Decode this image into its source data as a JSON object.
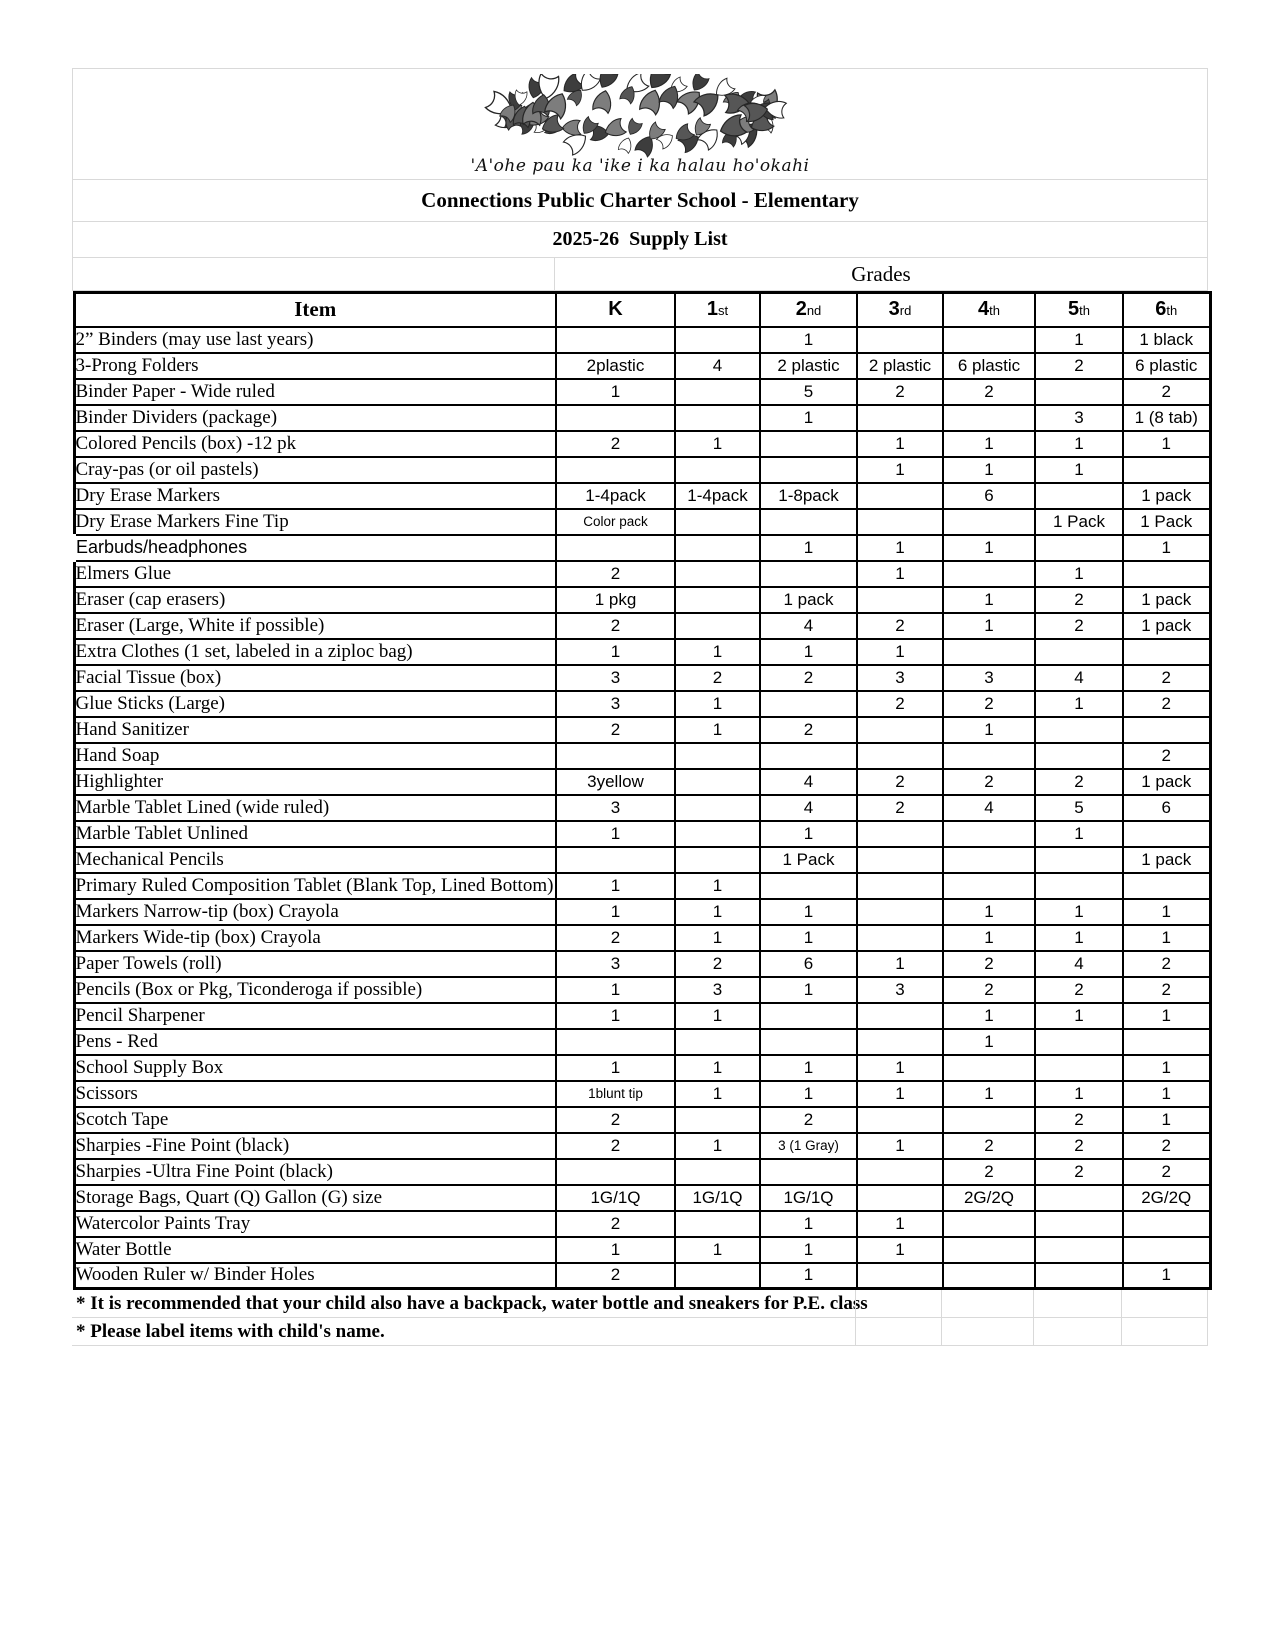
{
  "header": {
    "motto": "'A'ohe pau ka 'ike i ka halau ho'okahi",
    "school_title": "Connections Public Charter School - Elementary",
    "list_title": "2025-26  Supply List",
    "grades_label": "Grades"
  },
  "table": {
    "item_header": "Item",
    "grade_columns": [
      {
        "num": "K",
        "suffix": ""
      },
      {
        "num": "1",
        "suffix": "st"
      },
      {
        "num": "2",
        "suffix": "nd"
      },
      {
        "num": "3",
        "suffix": "rd"
      },
      {
        "num": "4",
        "suffix": "th"
      },
      {
        "num": "5",
        "suffix": "th"
      },
      {
        "num": "6",
        "suffix": "th"
      }
    ],
    "rows": [
      {
        "item": "2” Binders (may use last years)",
        "values": [
          "",
          "",
          "1",
          "",
          "",
          "1",
          "1 black"
        ]
      },
      {
        "item": "3-Prong Folders",
        "values": [
          "2plastic",
          "4",
          "2 plastic",
          "2 plastic",
          "6 plastic",
          "2",
          "6 plastic"
        ]
      },
      {
        "item": "Binder Paper - Wide ruled",
        "values": [
          "1",
          "",
          "5",
          "2",
          "2",
          "",
          "2"
        ]
      },
      {
        "item": "Binder Dividers (package)",
        "values": [
          "",
          "",
          "1",
          "",
          "",
          "3",
          "1 (8 tab)"
        ]
      },
      {
        "item": "Colored Pencils (box) -12 pk",
        "values": [
          "2",
          "1",
          "",
          "1",
          "1",
          "1",
          "1"
        ]
      },
      {
        "item": "Cray-pas (or oil pastels)",
        "values": [
          "",
          "",
          "",
          "1",
          "1",
          "1",
          ""
        ]
      },
      {
        "item": "Dry Erase Markers",
        "values": [
          "1-4pack",
          "1-4pack",
          "1-8pack",
          "",
          "6",
          "",
          "1 pack"
        ]
      },
      {
        "item": "Dry Erase Markers Fine Tip",
        "values": [
          "Color pack",
          "",
          "",
          "",
          "",
          "1 Pack",
          "1 Pack"
        ]
      },
      {
        "item": "Earbuds/headphones",
        "variant": "sans",
        "values": [
          "",
          "",
          "1",
          "1",
          "1",
          "",
          "1"
        ]
      },
      {
        "item": "Elmers Glue",
        "values": [
          "2",
          "",
          "",
          "1",
          "",
          "1",
          ""
        ]
      },
      {
        "item": "Eraser (cap erasers)",
        "values": [
          "1 pkg",
          "",
          "1 pack",
          "",
          "1",
          "2",
          "1 pack"
        ]
      },
      {
        "item": "Eraser (Large, White if possible)",
        "values": [
          "2",
          "",
          "4",
          "2",
          "1",
          "2",
          "1 pack"
        ]
      },
      {
        "item": "Extra Clothes (1 set, labeled in a ziploc bag)",
        "values": [
          "1",
          "1",
          "1",
          "1",
          "",
          "",
          ""
        ]
      },
      {
        "item": "Facial Tissue (box)",
        "values": [
          "3",
          "2",
          "2",
          "3",
          "3",
          "4",
          "2"
        ]
      },
      {
        "item": "Glue Sticks  (Large)",
        "values": [
          "3",
          "1",
          "",
          "2",
          "2",
          "1",
          "2"
        ]
      },
      {
        "item": "Hand Sanitizer",
        "values": [
          "2",
          "1",
          "2",
          "",
          "1",
          "",
          ""
        ]
      },
      {
        "item": "Hand Soap",
        "values": [
          "",
          "",
          "",
          "",
          "",
          "",
          "2"
        ]
      },
      {
        "item": "Highlighter",
        "values": [
          "3yellow",
          "",
          "4",
          "2",
          "2",
          "2",
          "1 pack"
        ]
      },
      {
        "item": "Marble Tablet Lined (wide ruled)",
        "values": [
          "3",
          "",
          "4",
          "2",
          "4",
          "5",
          "6"
        ]
      },
      {
        "item": "Marble Tablet Unlined",
        "values": [
          "1",
          "",
          "1",
          "",
          "",
          "1",
          ""
        ]
      },
      {
        "item": "Mechanical Pencils",
        "values": [
          "",
          "",
          "1 Pack",
          "",
          "",
          "",
          "1 pack"
        ]
      },
      {
        "item": "Primary Ruled Composition Tablet (Blank Top, Lined Bottom)",
        "values": [
          "1",
          "1",
          "",
          "",
          "",
          "",
          ""
        ]
      },
      {
        "item": "Markers Narrow-tip (box) Crayola",
        "values": [
          "1",
          "1",
          "1",
          "",
          "1",
          "1",
          "1"
        ]
      },
      {
        "item": "Markers Wide-tip (box) Crayola",
        "values": [
          "2",
          "1",
          "1",
          "",
          "1",
          "1",
          "1"
        ]
      },
      {
        "item": "Paper Towels  (roll)",
        "values": [
          "3",
          "2",
          "6",
          "1",
          "2",
          "4",
          "2"
        ]
      },
      {
        "item": "Pencils (Box or Pkg, Ticonderoga if possible)",
        "values": [
          "1",
          "3",
          "1",
          "3",
          "2",
          "2",
          "2"
        ]
      },
      {
        "item": "Pencil Sharpener",
        "values": [
          "1",
          "1",
          "",
          "",
          "1",
          "1",
          "1"
        ]
      },
      {
        "item": "Pens - Red",
        "values": [
          "",
          "",
          "",
          "",
          "1",
          "",
          ""
        ]
      },
      {
        "item": "School Supply Box",
        "values": [
          "1",
          "1",
          "1",
          "1",
          "",
          "",
          "1"
        ]
      },
      {
        "item": "Scissors",
        "values": [
          "1blunt tip",
          "1",
          "1",
          "1",
          "1",
          "1",
          "1"
        ]
      },
      {
        "item": "Scotch Tape",
        "values": [
          "2",
          "",
          "2",
          "",
          "",
          "2",
          "1"
        ]
      },
      {
        "item": "Sharpies -Fine Point  (black)",
        "values": [
          "2",
          "1",
          "3 (1 Gray)",
          "1",
          "2",
          "2",
          "2"
        ]
      },
      {
        "item": "Sharpies -Ultra Fine Point  (black)",
        "values": [
          "",
          "",
          "",
          "",
          "2",
          "2",
          "2"
        ]
      },
      {
        "item": "Storage Bags, Quart (Q) Gallon (G) size",
        "values": [
          "1G/1Q",
          "1G/1Q",
          "1G/1Q",
          "",
          "2G/2Q",
          "",
          "2G/2Q"
        ]
      },
      {
        "item": "Watercolor Paints Tray",
        "values": [
          "2",
          "",
          "1",
          "1",
          "",
          "",
          ""
        ]
      },
      {
        "item": "Water Bottle",
        "values": [
          "1",
          "1",
          "1",
          "1",
          "",
          "",
          ""
        ]
      },
      {
        "item": "Wooden Ruler w/ Binder Holes",
        "values": [
          "2",
          "",
          "1",
          "",
          "",
          "",
          "1"
        ]
      }
    ]
  },
  "notes": [
    "* It is recommended that your child also have a backpack, water bottle and sneakers for P.E. class",
    "* Please label items with child's name."
  ]
}
